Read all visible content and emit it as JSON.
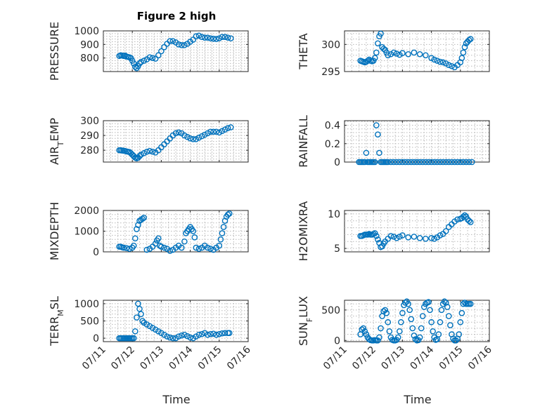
{
  "figure_title": "Figure 2 high",
  "colors": {
    "marker": "#0072BD",
    "axis": "#262626",
    "grid": "#b8b8b8"
  },
  "chart_data": [
    {
      "type": "scatter",
      "title": "Figure 2 high",
      "ylabel": "PRESSURE",
      "xlabel": "",
      "ylim": [
        700,
        1000
      ],
      "yticks": [
        800,
        900,
        1000
      ],
      "xlim": [
        11,
        16
      ],
      "grid": true,
      "series": [
        {
          "x": [
            11.55,
            11.6,
            11.65,
            11.7,
            11.75,
            11.8,
            11.85,
            11.9,
            11.95,
            12.0,
            12.05,
            12.1,
            12.15,
            12.2,
            12.25,
            12.3,
            12.4,
            12.5,
            12.6,
            12.7,
            12.8,
            12.9,
            13.0,
            13.1,
            13.2,
            13.3,
            13.4,
            13.5,
            13.6,
            13.7,
            13.8,
            13.9,
            14.0,
            14.1,
            14.2,
            14.3,
            14.4,
            14.5,
            14.6,
            14.7,
            14.8,
            14.9,
            15.0,
            15.1,
            15.2,
            15.3,
            15.4
          ],
          "y": [
            815,
            820,
            818,
            815,
            818,
            810,
            808,
            805,
            800,
            780,
            760,
            735,
            725,
            740,
            760,
            770,
            780,
            790,
            805,
            800,
            795,
            820,
            850,
            880,
            905,
            925,
            925,
            915,
            900,
            895,
            895,
            905,
            920,
            935,
            960,
            965,
            955,
            950,
            950,
            945,
            942,
            940,
            945,
            955,
            955,
            950,
            945
          ]
        }
      ]
    },
    {
      "type": "scatter",
      "ylabel": "THETA",
      "xlabel": "",
      "ylim": [
        295,
        302.5
      ],
      "yticks": [
        295,
        300
      ],
      "xlim": [
        11,
        16
      ],
      "grid": true,
      "series": [
        {
          "x": [
            11.55,
            11.6,
            11.65,
            11.7,
            11.75,
            11.8,
            11.85,
            11.9,
            11.95,
            12.0,
            12.05,
            12.1,
            12.15,
            12.2,
            12.25,
            12.3,
            12.35,
            12.4,
            12.45,
            12.5,
            12.6,
            12.7,
            12.8,
            12.9,
            13.0,
            13.2,
            13.4,
            13.6,
            13.8,
            14.0,
            14.1,
            14.2,
            14.3,
            14.4,
            14.5,
            14.6,
            14.7,
            14.8,
            14.9,
            15.0,
            15.05,
            15.1,
            15.15,
            15.2,
            15.25,
            15.3,
            15.35
          ],
          "y": [
            297,
            296.9,
            296.8,
            296.7,
            296.8,
            297,
            297.2,
            297,
            296.9,
            297,
            297.5,
            298.5,
            300.2,
            301.5,
            302,
            299.5,
            299.2,
            299,
            298.5,
            298,
            298.2,
            298.5,
            298.3,
            298.1,
            298.4,
            298.2,
            298.5,
            298.2,
            298,
            297.5,
            297.2,
            297,
            296.8,
            296.7,
            296.5,
            296.2,
            296,
            295.8,
            296.2,
            296.7,
            297.5,
            298.5,
            299.5,
            300.2,
            300.5,
            300.8,
            301
          ]
        }
      ]
    },
    {
      "type": "scatter",
      "ylabel": "AIR_TEMP",
      "xlabel": "",
      "ylim": [
        272,
        300
      ],
      "yticks": [
        280,
        290,
        300
      ],
      "xlim": [
        11,
        16
      ],
      "grid": true,
      "series": [
        {
          "x": [
            11.55,
            11.6,
            11.65,
            11.7,
            11.75,
            11.8,
            11.85,
            11.9,
            11.95,
            12.0,
            12.05,
            12.1,
            12.15,
            12.2,
            12.25,
            12.3,
            12.4,
            12.5,
            12.6,
            12.7,
            12.8,
            12.9,
            13.0,
            13.1,
            13.2,
            13.3,
            13.4,
            13.5,
            13.6,
            13.7,
            13.8,
            13.9,
            14.0,
            14.1,
            14.2,
            14.3,
            14.4,
            14.5,
            14.6,
            14.7,
            14.8,
            14.9,
            15.0,
            15.1,
            15.2,
            15.3,
            15.4
          ],
          "y": [
            280,
            280,
            279.8,
            279.7,
            279.5,
            279.2,
            279,
            278.8,
            278,
            277,
            276,
            275,
            274.5,
            275,
            276,
            277,
            278,
            279,
            279.5,
            279,
            278.5,
            280,
            282,
            284,
            286,
            288,
            290,
            291.5,
            292,
            291.5,
            290,
            289,
            288,
            287.5,
            287.5,
            288.5,
            289.5,
            290.5,
            291.5,
            292.5,
            292.5,
            292.5,
            292,
            293,
            294,
            295,
            295.5
          ]
        }
      ]
    },
    {
      "type": "scatter",
      "ylabel": "RAINFALL",
      "xlabel": "",
      "ylim": [
        0,
        0.45
      ],
      "yticks": [
        0,
        0.2,
        0.4
      ],
      "xlim": [
        11,
        16
      ],
      "grid": true,
      "series": [
        {
          "x": [
            11.5,
            11.55,
            11.6,
            11.65,
            11.7,
            11.75,
            11.8,
            11.85,
            11.9,
            11.95,
            12.0,
            12.05,
            12.1,
            12.15,
            12.2,
            12.25,
            12.3,
            12.35,
            12.4,
            12.45,
            12.5,
            12.6,
            12.7,
            12.8,
            12.9,
            13.0,
            13.1,
            13.2,
            13.3,
            13.4,
            13.5,
            13.6,
            13.7,
            13.8,
            13.9,
            14.0,
            14.1,
            14.2,
            14.3,
            14.4,
            14.5,
            14.6,
            14.7,
            14.8,
            14.9,
            15.0,
            15.1,
            15.2,
            15.3,
            15.4
          ],
          "y": [
            0,
            0,
            0,
            0,
            0,
            0.1,
            0,
            0,
            0,
            0,
            0,
            0,
            0.4,
            0.3,
            0.1,
            0,
            0,
            0,
            0,
            0,
            0,
            0,
            0,
            0,
            0,
            0,
            0,
            0,
            0,
            0,
            0,
            0,
            0,
            0,
            0,
            0,
            0,
            0,
            0,
            0,
            0,
            0,
            0,
            0,
            0,
            0,
            0,
            0,
            0,
            0
          ]
        }
      ]
    },
    {
      "type": "scatter",
      "ylabel": "MIXDEPTH",
      "xlabel": "",
      "ylim": [
        0,
        2000
      ],
      "yticks": [
        0,
        1000,
        2000
      ],
      "xlim": [
        11,
        16
      ],
      "grid": true,
      "series": [
        {
          "x": [
            11.55,
            11.6,
            11.65,
            11.7,
            11.8,
            11.9,
            12.0,
            12.05,
            12.1,
            12.15,
            12.2,
            12.25,
            12.3,
            12.35,
            12.4,
            12.5,
            12.6,
            12.7,
            12.8,
            12.85,
            12.9,
            12.95,
            13.0,
            13.1,
            13.2,
            13.3,
            13.4,
            13.5,
            13.6,
            13.7,
            13.8,
            13.85,
            13.9,
            13.95,
            14.0,
            14.05,
            14.1,
            14.15,
            14.2,
            14.3,
            14.4,
            14.5,
            14.6,
            14.7,
            14.8,
            14.9,
            15.0,
            15.05,
            15.1,
            15.15,
            15.2,
            15.25,
            15.3,
            15.35
          ],
          "y": [
            250,
            250,
            220,
            200,
            180,
            150,
            200,
            300,
            650,
            1100,
            1300,
            1500,
            1550,
            1600,
            1650,
            100,
            150,
            250,
            400,
            550,
            650,
            300,
            250,
            200,
            150,
            50,
            100,
            200,
            300,
            200,
            500,
            900,
            1000,
            1100,
            1200,
            1100,
            1000,
            700,
            200,
            150,
            200,
            300,
            200,
            150,
            100,
            200,
            300,
            600,
            900,
            1200,
            1500,
            1700,
            1800,
            1850
          ]
        }
      ]
    },
    {
      "type": "scatter",
      "ylabel": "H2OMIXRA",
      "xlabel": "",
      "ylim": [
        4.5,
        10.5
      ],
      "yticks": [
        5,
        10
      ],
      "xlim": [
        11,
        16
      ],
      "grid": true,
      "series": [
        {
          "x": [
            11.55,
            11.6,
            11.65,
            11.7,
            11.75,
            11.8,
            11.85,
            11.9,
            11.95,
            12.0,
            12.05,
            12.1,
            12.15,
            12.2,
            12.25,
            12.3,
            12.35,
            12.4,
            12.5,
            12.6,
            12.7,
            12.8,
            12.9,
            13.0,
            13.2,
            13.4,
            13.6,
            13.8,
            14.0,
            14.1,
            14.2,
            14.3,
            14.4,
            14.5,
            14.6,
            14.7,
            14.8,
            14.9,
            15.0,
            15.05,
            15.1,
            15.15,
            15.2,
            15.25,
            15.3,
            15.35
          ],
          "y": [
            6.8,
            6.8,
            6.9,
            7.0,
            7.0,
            7.0,
            7.1,
            7.0,
            7.0,
            7.1,
            7.2,
            6.8,
            6.3,
            5.8,
            5.2,
            5.3,
            5.7,
            6.0,
            6.4,
            6.8,
            6.7,
            6.5,
            6.7,
            6.9,
            6.6,
            6.7,
            6.5,
            6.4,
            6.5,
            6.4,
            6.6,
            6.9,
            7.1,
            7.5,
            8.1,
            8.5,
            8.9,
            9.2,
            9.3,
            9.4,
            9.6,
            9.8,
            9.6,
            9.2,
            9.0,
            8.8
          ]
        }
      ]
    },
    {
      "type": "scatter",
      "ylabel": "TERR_MSL",
      "xlabel": "Time",
      "ylim": [
        -100,
        1100
      ],
      "yticks": [
        0,
        500,
        1000
      ],
      "xlim": [
        11,
        16
      ],
      "xticklabels": [
        "07/11",
        "07/12",
        "07/13",
        "07/14",
        "07/15",
        "07/16"
      ],
      "grid": true,
      "series": [
        {
          "x": [
            11.55,
            11.6,
            11.65,
            11.7,
            11.75,
            11.8,
            11.85,
            11.9,
            11.95,
            12.0,
            12.05,
            12.1,
            12.15,
            12.2,
            12.25,
            12.3,
            12.35,
            12.4,
            12.5,
            12.6,
            12.7,
            12.8,
            12.9,
            13.0,
            13.1,
            13.2,
            13.3,
            13.4,
            13.5,
            13.6,
            13.7,
            13.8,
            13.9,
            14.0,
            14.1,
            14.2,
            14.3,
            14.4,
            14.5,
            14.6,
            14.7,
            14.8,
            14.9,
            15.0,
            15.1,
            15.2,
            15.3,
            15.35
          ],
          "y": [
            0,
            0,
            0,
            0,
            0,
            0,
            0,
            0,
            0,
            0,
            0,
            200,
            600,
            1000,
            850,
            700,
            500,
            450,
            400,
            350,
            300,
            250,
            200,
            150,
            100,
            50,
            20,
            0,
            0,
            50,
            80,
            100,
            60,
            20,
            0,
            50,
            100,
            120,
            150,
            100,
            120,
            130,
            100,
            120,
            140,
            150,
            150,
            150
          ]
        }
      ]
    },
    {
      "type": "scatter",
      "ylabel": "SUN_FLUX",
      "xlabel": "Time",
      "ylim": [
        -20,
        660
      ],
      "yticks": [
        0,
        500
      ],
      "xlim": [
        11,
        16
      ],
      "xticklabels": [
        "07/11",
        "07/12",
        "07/13",
        "07/14",
        "07/15",
        "07/16"
      ],
      "grid": true,
      "series": [
        {
          "x": [
            11.55,
            11.6,
            11.65,
            11.7,
            11.75,
            11.8,
            11.85,
            11.9,
            11.95,
            12.0,
            12.05,
            12.1,
            12.15,
            12.2,
            12.25,
            12.3,
            12.35,
            12.4,
            12.45,
            12.5,
            12.55,
            12.6,
            12.65,
            12.7,
            12.75,
            12.8,
            12.85,
            12.9,
            12.95,
            13.0,
            13.05,
            13.1,
            13.15,
            13.2,
            13.25,
            13.3,
            13.35,
            13.4,
            13.45,
            13.5,
            13.55,
            13.6,
            13.65,
            13.7,
            13.75,
            13.8,
            13.85,
            13.9,
            13.95,
            14.0,
            14.05,
            14.1,
            14.15,
            14.2,
            14.25,
            14.3,
            14.35,
            14.4,
            14.45,
            14.5,
            14.55,
            14.6,
            14.65,
            14.7,
            14.75,
            14.8,
            14.85,
            14.9,
            14.95,
            15.0,
            15.05,
            15.1,
            15.15,
            15.2,
            15.25,
            15.3,
            15.35
          ],
          "y": [
            100,
            180,
            200,
            150,
            100,
            50,
            20,
            5,
            0,
            0,
            5,
            0,
            0,
            50,
            200,
            400,
            480,
            500,
            450,
            300,
            150,
            50,
            10,
            0,
            0,
            10,
            50,
            150,
            300,
            450,
            580,
            620,
            640,
            600,
            500,
            350,
            200,
            80,
            20,
            0,
            5,
            50,
            200,
            400,
            550,
            600,
            620,
            630,
            500,
            300,
            150,
            50,
            10,
            20,
            100,
            300,
            500,
            600,
            640,
            620,
            550,
            400,
            250,
            100,
            30,
            0,
            0,
            30,
            100,
            300,
            450,
            600,
            620,
            600,
            600,
            600,
            600
          ]
        }
      ]
    }
  ]
}
